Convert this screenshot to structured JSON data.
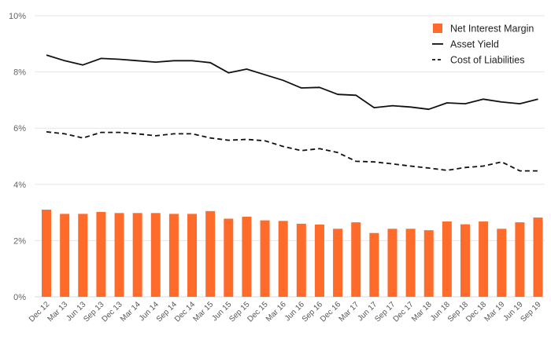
{
  "chart_data": {
    "type": "bar",
    "categories": [
      "Dec 12",
      "Mar 13",
      "Jun 13",
      "Sep 13",
      "Dec 13",
      "Mar 14",
      "Jun 14",
      "Sep 14",
      "Dec 14",
      "Mar 15",
      "Jun 15",
      "Sep 15",
      "Dec 15",
      "Mar 16",
      "Jun 16",
      "Sep 16",
      "Dec 16",
      "Mar 17",
      "Jun 17",
      "Sep 17",
      "Dec 17",
      "Mar 18",
      "Jun 18",
      "Sep 18",
      "Dec 18",
      "Mar 19",
      "Jun 19",
      "Sep 19"
    ],
    "ylim": [
      0,
      10
    ],
    "yticks": [
      {
        "value": 0,
        "label": "0%"
      },
      {
        "value": 2,
        "label": "2%"
      },
      {
        "value": 4,
        "label": "4%"
      },
      {
        "value": 6,
        "label": "6%"
      },
      {
        "value": 8,
        "label": "8%"
      },
      {
        "value": 10,
        "label": "10%"
      }
    ],
    "grid": true,
    "legend_position": "top-right",
    "series": [
      {
        "name": "Net Interest Margin",
        "kind": "bar",
        "color": "#ff6b2b",
        "values": [
          3.1,
          2.95,
          2.95,
          3.02,
          2.98,
          2.98,
          2.98,
          2.95,
          2.95,
          3.05,
          2.78,
          2.85,
          2.72,
          2.7,
          2.6,
          2.57,
          2.42,
          2.65,
          2.27,
          2.42,
          2.42,
          2.37,
          2.68,
          2.58,
          2.68,
          2.42,
          2.65,
          2.82
        ]
      },
      {
        "name": "Asset Yield",
        "kind": "line",
        "style": "solid",
        "color": "#111111",
        "values": [
          8.6,
          8.4,
          8.25,
          8.48,
          8.45,
          8.4,
          8.35,
          8.4,
          8.4,
          8.33,
          7.97,
          8.1,
          7.9,
          7.7,
          7.43,
          7.45,
          7.2,
          7.17,
          6.73,
          6.8,
          6.75,
          6.67,
          6.9,
          6.87,
          7.03,
          6.93,
          6.87,
          7.03
        ]
      },
      {
        "name": "Cost of Liabilities",
        "kind": "line",
        "style": "dashed",
        "color": "#111111",
        "values": [
          5.87,
          5.8,
          5.65,
          5.85,
          5.85,
          5.8,
          5.73,
          5.8,
          5.8,
          5.65,
          5.57,
          5.6,
          5.55,
          5.35,
          5.2,
          5.27,
          5.13,
          4.82,
          4.8,
          4.73,
          4.65,
          4.58,
          4.5,
          4.6,
          4.65,
          4.8,
          4.48,
          4.48
        ]
      }
    ]
  }
}
